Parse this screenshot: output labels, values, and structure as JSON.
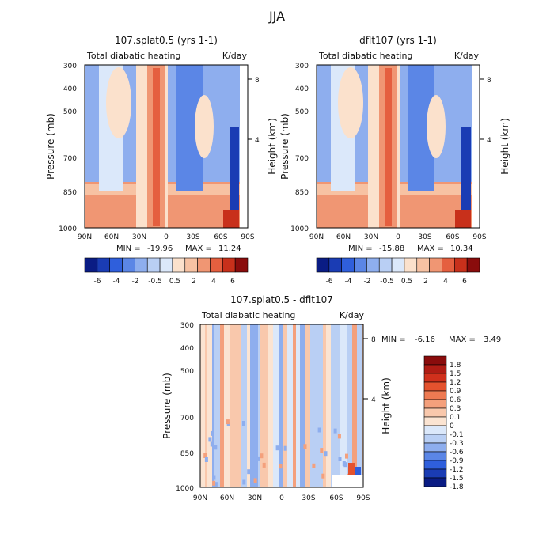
{
  "page_title": "JJA",
  "chart_data": [
    {
      "type": "heatmap",
      "title": "107.splat0.5 (yrs 1-1)",
      "field_label": "Total diabatic heating",
      "units_label": "K/day",
      "ylabel": "Pressure (mb)",
      "ylabel_right": "Height (km)",
      "x_ticks": [
        "90N",
        "60N",
        "30N",
        "0",
        "30S",
        "60S",
        "90S"
      ],
      "y_ticks": [
        "300",
        "400",
        "500",
        "700",
        "850",
        "1000"
      ],
      "height_ticks": [
        "8",
        "4"
      ],
      "x_range": [
        90,
        -90
      ],
      "y_range": [
        1000,
        300
      ],
      "min_label": "MIN =",
      "min_value": "-19.96",
      "max_label": "MAX =",
      "max_value": "11.24",
      "colorbar_ticks": [
        "-6",
        "-4",
        "-2",
        "-0.5",
        "0.5",
        "2",
        "4",
        "6"
      ]
    },
    {
      "type": "heatmap",
      "title": "dflt107 (yrs 1-1)",
      "field_label": "Total diabatic heating",
      "units_label": "K/day",
      "ylabel": "Pressure (mb)",
      "ylabel_right": "Height (km)",
      "x_ticks": [
        "90N",
        "60N",
        "30N",
        "0",
        "30S",
        "60S",
        "90S"
      ],
      "y_ticks": [
        "300",
        "400",
        "500",
        "700",
        "850",
        "1000"
      ],
      "height_ticks": [
        "8",
        "4"
      ],
      "x_range": [
        90,
        -90
      ],
      "y_range": [
        1000,
        300
      ],
      "min_label": "MIN =",
      "min_value": "-15.88",
      "max_label": "MAX =",
      "max_value": "10.34",
      "colorbar_ticks": [
        "-6",
        "-4",
        "-2",
        "-0.5",
        "0.5",
        "2",
        "4",
        "6"
      ]
    },
    {
      "type": "heatmap",
      "title": "107.splat0.5 - dflt107",
      "field_label": "Total diabatic heating",
      "units_label": "K/day",
      "ylabel": "Pressure (mb)",
      "ylabel_right": "Height (km)",
      "x_ticks": [
        "90N",
        "60N",
        "30N",
        "0",
        "30S",
        "60S",
        "90S"
      ],
      "y_ticks": [
        "300",
        "400",
        "500",
        "700",
        "850",
        "1000"
      ],
      "height_ticks": [
        "8",
        "4"
      ],
      "x_range": [
        90,
        -90
      ],
      "y_range": [
        1000,
        300
      ],
      "min_label": "MIN =",
      "min_value": "-6.16",
      "max_label": "MAX =",
      "max_value": "3.49",
      "colorbar_ticks": [
        "1.8",
        "1.5",
        "1.2",
        "0.9",
        "0.6",
        "0.3",
        "0.1",
        "0",
        "-0.1",
        "-0.3",
        "-0.6",
        "-0.9",
        "-1.2",
        "-1.5",
        "-1.8"
      ]
    }
  ],
  "colors": {
    "colorbar_top": [
      "#0a1c84",
      "#1a3cb4",
      "#2f5fdc",
      "#5b86e6",
      "#8eaeee",
      "#b9cff4",
      "#dbe8fa",
      "#fbe1cc",
      "#f7c2a3",
      "#f09673",
      "#e55f3f",
      "#c8301b",
      "#8a0c0c"
    ],
    "colorbar_diff": [
      "#8a0c0c",
      "#b01c14",
      "#d0301c",
      "#e4522e",
      "#ee7a52",
      "#f4a07c",
      "#f9c8ac",
      "#fbe4d2",
      "#dbe8fa",
      "#b9cff4",
      "#8eaeee",
      "#5b86e6",
      "#2f5fdc",
      "#1a3cb4",
      "#0a1c84"
    ]
  }
}
